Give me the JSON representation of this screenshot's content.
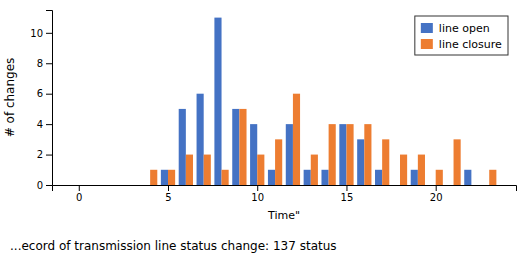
{
  "chart_data": {
    "type": "bar",
    "xlabel": "Time\"",
    "ylabel": "# of changes",
    "annotations": [
      "...ecord of transmission line status change: 137 status"
    ],
    "series": [
      {
        "name": "line open",
        "color": "#4472c4",
        "x": [
          5,
          6,
          7,
          8,
          9,
          10,
          11,
          12,
          13,
          14,
          15,
          16,
          17,
          18,
          19,
          20,
          21,
          22,
          23
        ],
        "values": [
          1,
          5,
          6,
          11,
          5,
          4,
          1,
          4,
          1,
          1,
          4,
          3,
          1,
          0,
          1,
          0,
          0,
          1,
          0
        ]
      },
      {
        "name": "line closure",
        "color": "#ed7d31",
        "x": [
          4,
          5,
          6,
          7,
          8,
          9,
          10,
          11,
          12,
          13,
          14,
          15,
          16,
          17,
          18,
          19,
          20,
          21,
          22,
          23
        ],
        "values": [
          1,
          1,
          2,
          2,
          1,
          5,
          2,
          3,
          6,
          2,
          4,
          4,
          4,
          3,
          2,
          2,
          1,
          3,
          0,
          1
        ]
      }
    ],
    "xlim": [
      -1.5,
      24.5
    ],
    "ylim": [
      0,
      11.5
    ],
    "xticks": [
      0,
      5,
      10,
      15,
      20
    ],
    "yticks": [
      0,
      2,
      4,
      6,
      8,
      10
    ],
    "grid": false,
    "legend": "upper right"
  }
}
